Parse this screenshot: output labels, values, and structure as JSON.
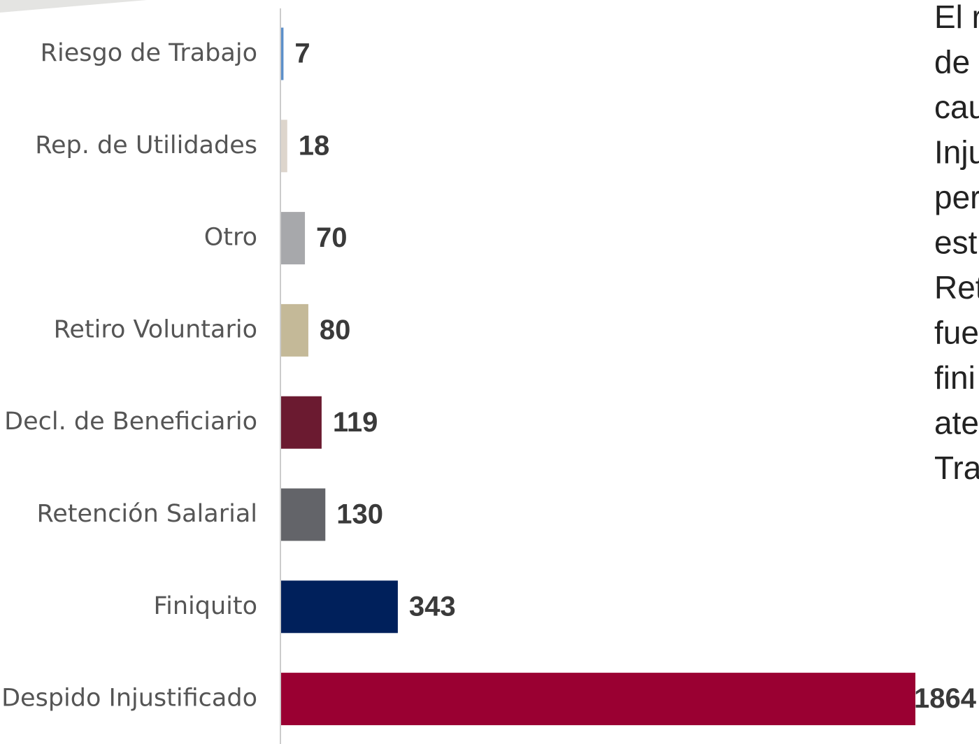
{
  "chart_data": {
    "type": "bar",
    "orientation": "horizontal",
    "categories": [
      "Riesgo de Trabajo",
      "Rep. de Utilidades",
      "Otro",
      "Retiro Voluntario",
      "Decl. de Beneficiario",
      "Retención Salarial",
      "Finiquito",
      "Despido Injustificado"
    ],
    "values": [
      7,
      18,
      70,
      80,
      119,
      130,
      343,
      1864
    ],
    "colors": [
      "#5b8fc9",
      "#ddd5cc",
      "#a7a8ab",
      "#c4b998",
      "#6b1a30",
      "#636469",
      "#00205b",
      "#9a0032"
    ],
    "annotation_lines": [
      "El r",
      "de",
      "cau",
      "Inju",
      "per",
      "est",
      "Ret",
      "fue",
      "fini",
      "ate",
      "Tra"
    ]
  }
}
